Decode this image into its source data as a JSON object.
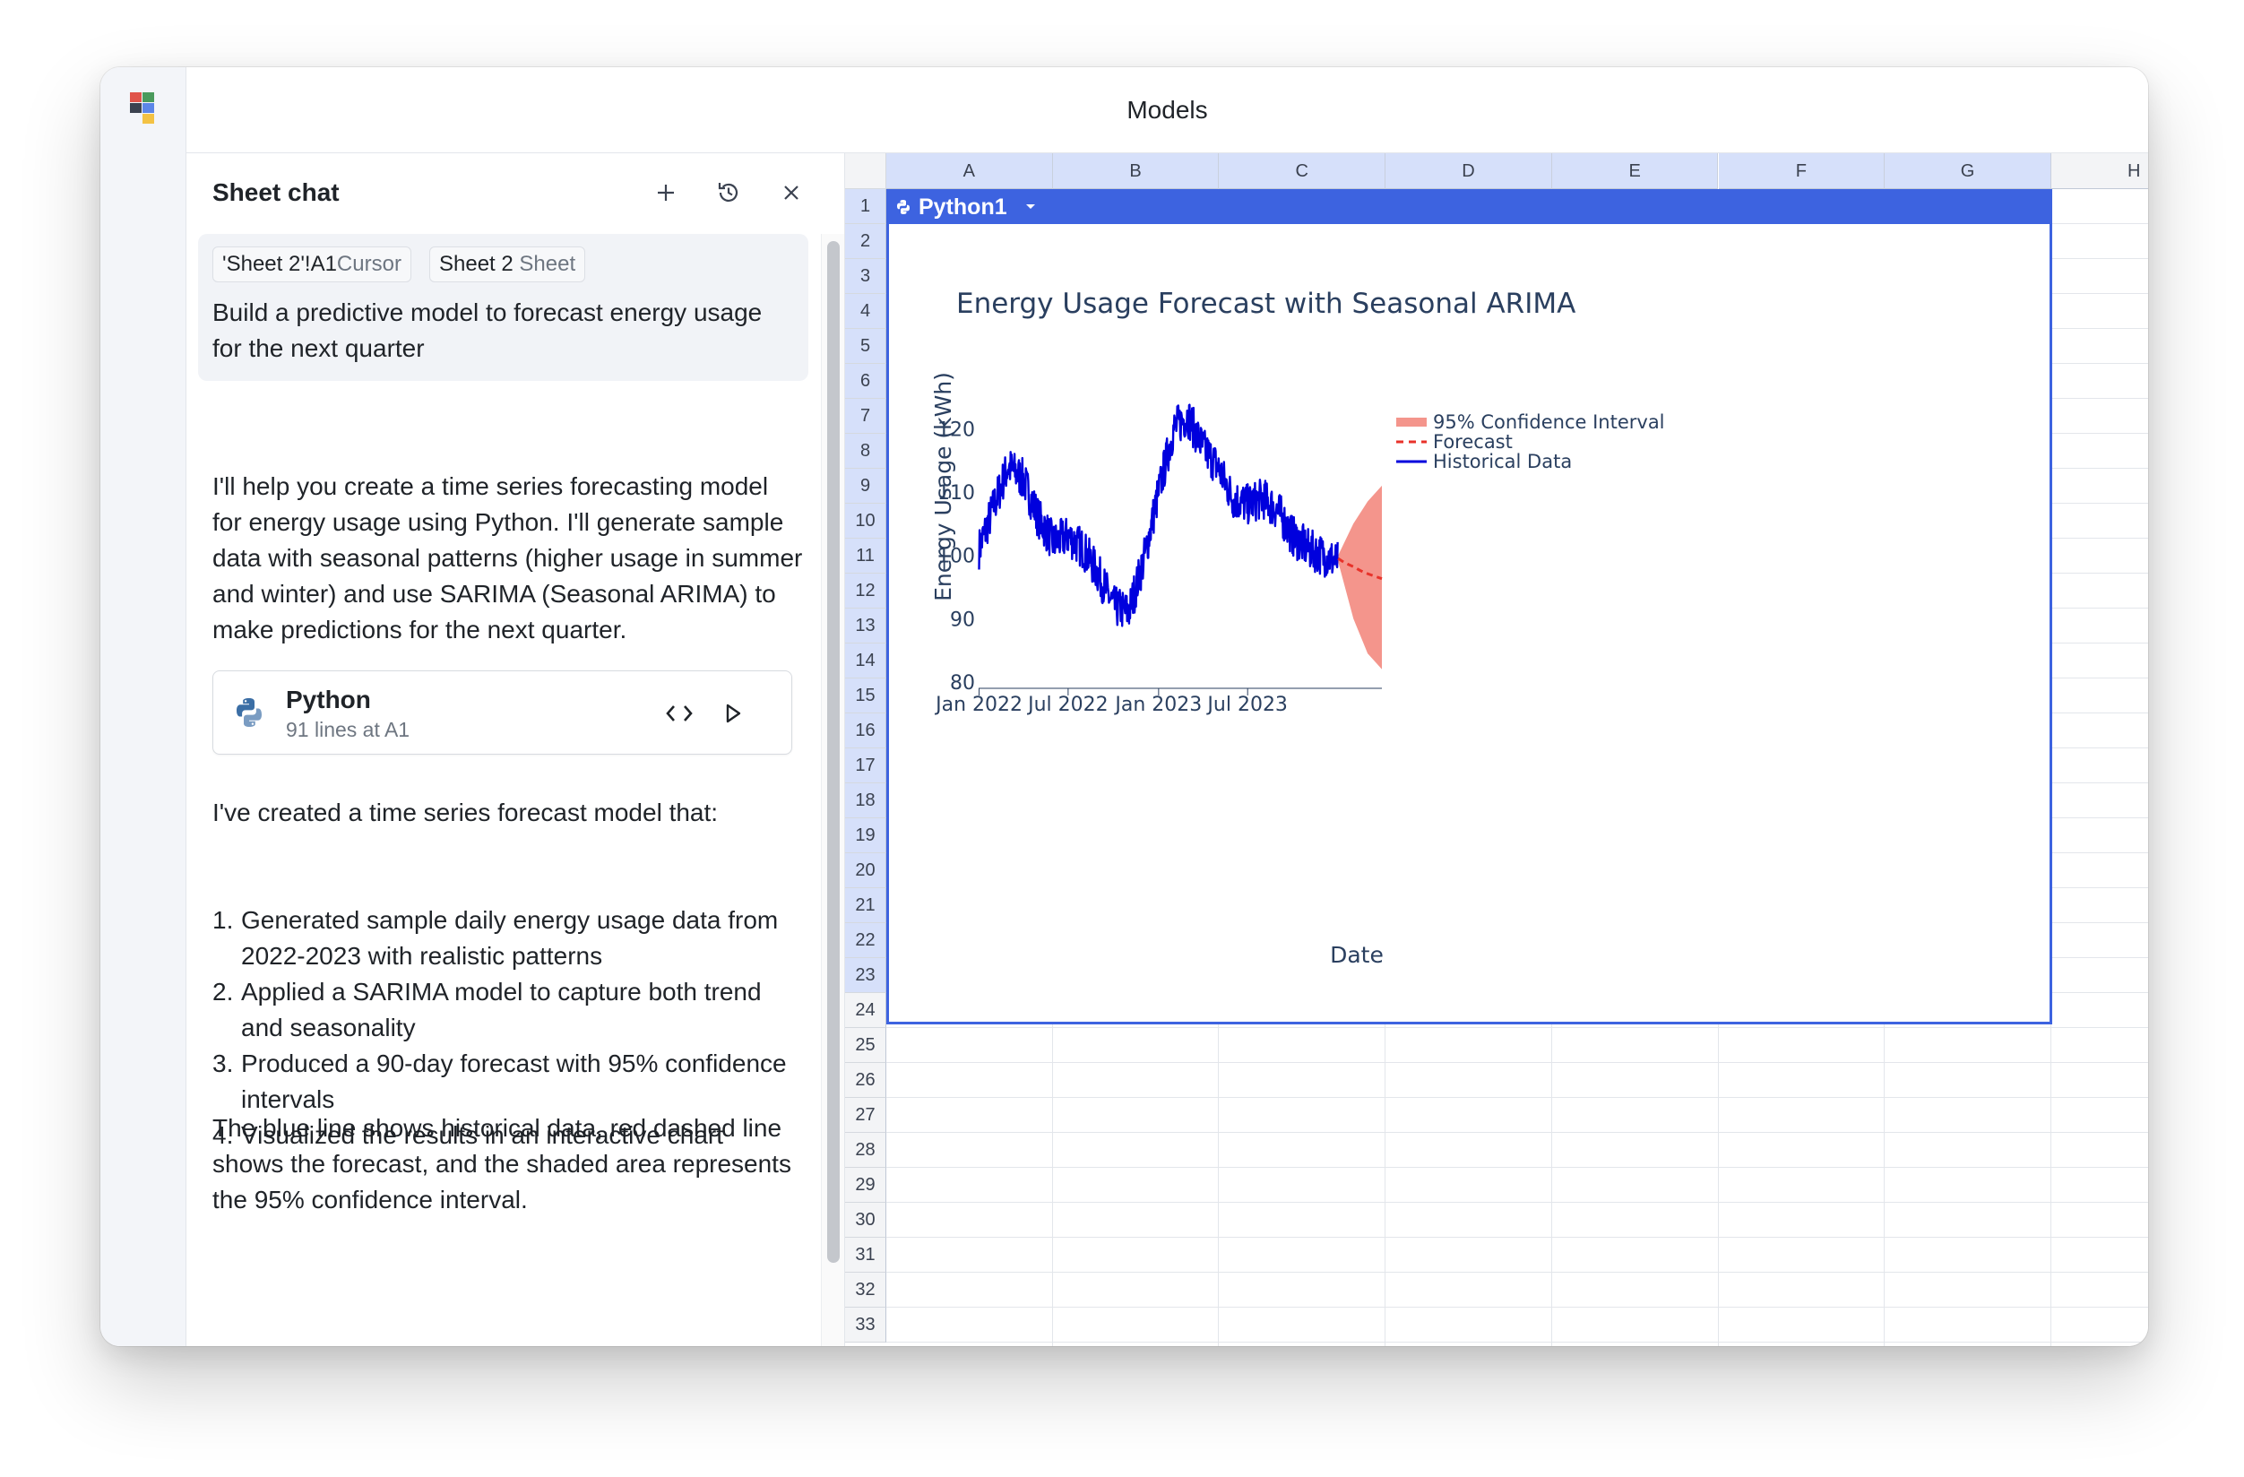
{
  "window": {
    "title": "Models"
  },
  "chat": {
    "title": "Sheet chat",
    "context_chips": [
      {
        "main": "'Sheet 2'!A1",
        "kind": "Cursor"
      },
      {
        "main": "Sheet 2",
        "kind": "Sheet"
      }
    ],
    "user_message": "Build a predictive model to forecast energy usage for the next quarter",
    "assistant_intro": "I'll help you create a time series forecasting model for energy usage using Python. I'll generate sample data with seasonal patterns (higher usage in summer and winter) and use SARIMA (Seasonal ARIMA) to make predictions for the next quarter.",
    "code_card": {
      "title": "Python",
      "subtitle": "91 lines at A1"
    },
    "summary_intro": "I've created a time series forecast model that:",
    "summary_items": [
      "Generated sample daily energy usage data from 2022-2023 with realistic patterns",
      "Applied a SARIMA model to capture both trend and seasonality",
      "Produced a 90-day forecast with 95% confidence intervals",
      "Visualized the results in an interactive chart"
    ],
    "closing": "The blue line shows historical data, red dashed line shows the forecast, and the shaded area represents the 95% confidence interval."
  },
  "sheet": {
    "columns": [
      "A",
      "B",
      "C",
      "D",
      "E",
      "F",
      "G",
      "H"
    ],
    "rows": [
      "1",
      "2",
      "3",
      "4",
      "5",
      "6",
      "7",
      "8",
      "9",
      "10",
      "11",
      "12",
      "13",
      "14",
      "15",
      "16",
      "17",
      "18",
      "19",
      "20",
      "21",
      "22",
      "23",
      "24",
      "25",
      "26",
      "27",
      "28",
      "29",
      "30",
      "31",
      "32",
      "33"
    ],
    "python_cell": {
      "label": "Python1"
    }
  },
  "colors": {
    "accent": "#3d63e0",
    "historical": "#0000dd",
    "forecast": "#e8322a",
    "confidence": "#f4958c",
    "header_highlight": "#d6e0fa"
  },
  "chart_data": {
    "type": "line",
    "title": "Energy Usage Forecast with Seasonal ARIMA",
    "xlabel": "Date",
    "ylabel": "Energy Usage (kWh)",
    "x_ticks": [
      "Jan 2022",
      "Jul 2022",
      "Jan 2023",
      "Jul 2023"
    ],
    "y_ticks": [
      80,
      90,
      100,
      110,
      120
    ],
    "ylim": [
      79,
      124
    ],
    "xlim": [
      "2021-12-31",
      "2024-03-30"
    ],
    "legend_position": "top-right",
    "series": [
      {
        "name": "Historical Data",
        "style": "solid",
        "x": [
          "2022-01-01",
          "2022-02-01",
          "2022-03-01",
          "2022-04-01",
          "2022-05-01",
          "2022-06-01",
          "2022-07-01",
          "2022-08-01",
          "2022-09-01",
          "2022-10-01",
          "2022-11-01",
          "2022-12-01",
          "2023-01-01",
          "2023-02-01",
          "2023-03-01",
          "2023-04-01",
          "2023-05-01",
          "2023-06-01",
          "2023-07-01",
          "2023-08-01",
          "2023-09-01",
          "2023-10-01",
          "2023-11-01",
          "2023-12-31"
        ],
        "y": [
          101,
          108,
          114,
          112,
          106,
          102,
          103,
          101,
          97,
          92,
          91,
          99,
          110,
          120,
          122,
          117,
          114,
          109,
          108,
          109,
          107,
          103,
          101,
          99
        ]
      },
      {
        "name": "Forecast",
        "style": "dash",
        "x": [
          "2024-01-01",
          "2024-01-15",
          "2024-02-01",
          "2024-02-15",
          "2024-03-01",
          "2024-03-15",
          "2024-03-30"
        ],
        "y": [
          99.5,
          98.8,
          98.2,
          97.6,
          97.1,
          96.7,
          96.3
        ]
      },
      {
        "name": "95% Confidence Interval",
        "style": "fill",
        "x": [
          "2024-01-01",
          "2024-02-01",
          "2024-03-01",
          "2024-03-30"
        ],
        "lower": [
          99,
          90,
          84.5,
          82
        ],
        "upper": [
          100,
          105,
          108.5,
          111
        ]
      }
    ]
  }
}
